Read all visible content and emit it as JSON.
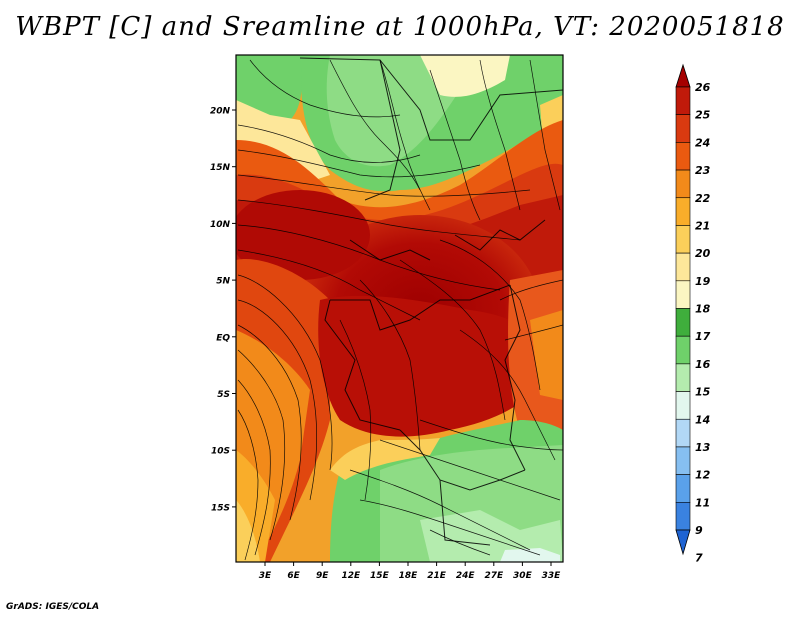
{
  "title": "WBPT [C] and Sreamline at 1000hPa, VT: 2020051818",
  "credit": "GrADS: IGES/COLA",
  "map": {
    "lat_labels": [
      "20N",
      "15N",
      "10N",
      "5N",
      "EQ",
      "5S",
      "10S",
      "15S"
    ],
    "lon_labels": [
      "3E",
      "6E",
      "9E",
      "12E",
      "15E",
      "18E",
      "21E",
      "24E",
      "27E",
      "30E",
      "33E"
    ]
  },
  "colorbar": {
    "levels": [
      {
        "label": "26",
        "color": "#a50000"
      },
      {
        "label": "25",
        "color": "#c01a0a"
      },
      {
        "label": "24",
        "color": "#d93a10"
      },
      {
        "label": "23",
        "color": "#ea5a10"
      },
      {
        "label": "22",
        "color": "#f28a1a"
      },
      {
        "label": "21",
        "color": "#f9ad2a"
      },
      {
        "label": "20",
        "color": "#fbcf5a"
      },
      {
        "label": "19",
        "color": "#fde79a"
      },
      {
        "label": "18",
        "color": "#fbf6c2"
      },
      {
        "label": "17",
        "color": "#3fae3c"
      },
      {
        "label": "16",
        "color": "#6fd16a"
      },
      {
        "label": "15",
        "color": "#b4ecae"
      },
      {
        "label": "14",
        "color": "#e2f7ee"
      },
      {
        "label": "13",
        "color": "#b2d8f6"
      },
      {
        "label": "12",
        "color": "#86bff1"
      },
      {
        "label": "11",
        "color": "#5aa1ea"
      },
      {
        "label": "9",
        "color": "#3a82e0"
      },
      {
        "label": "7",
        "color": "#1e63d2"
      }
    ]
  }
}
